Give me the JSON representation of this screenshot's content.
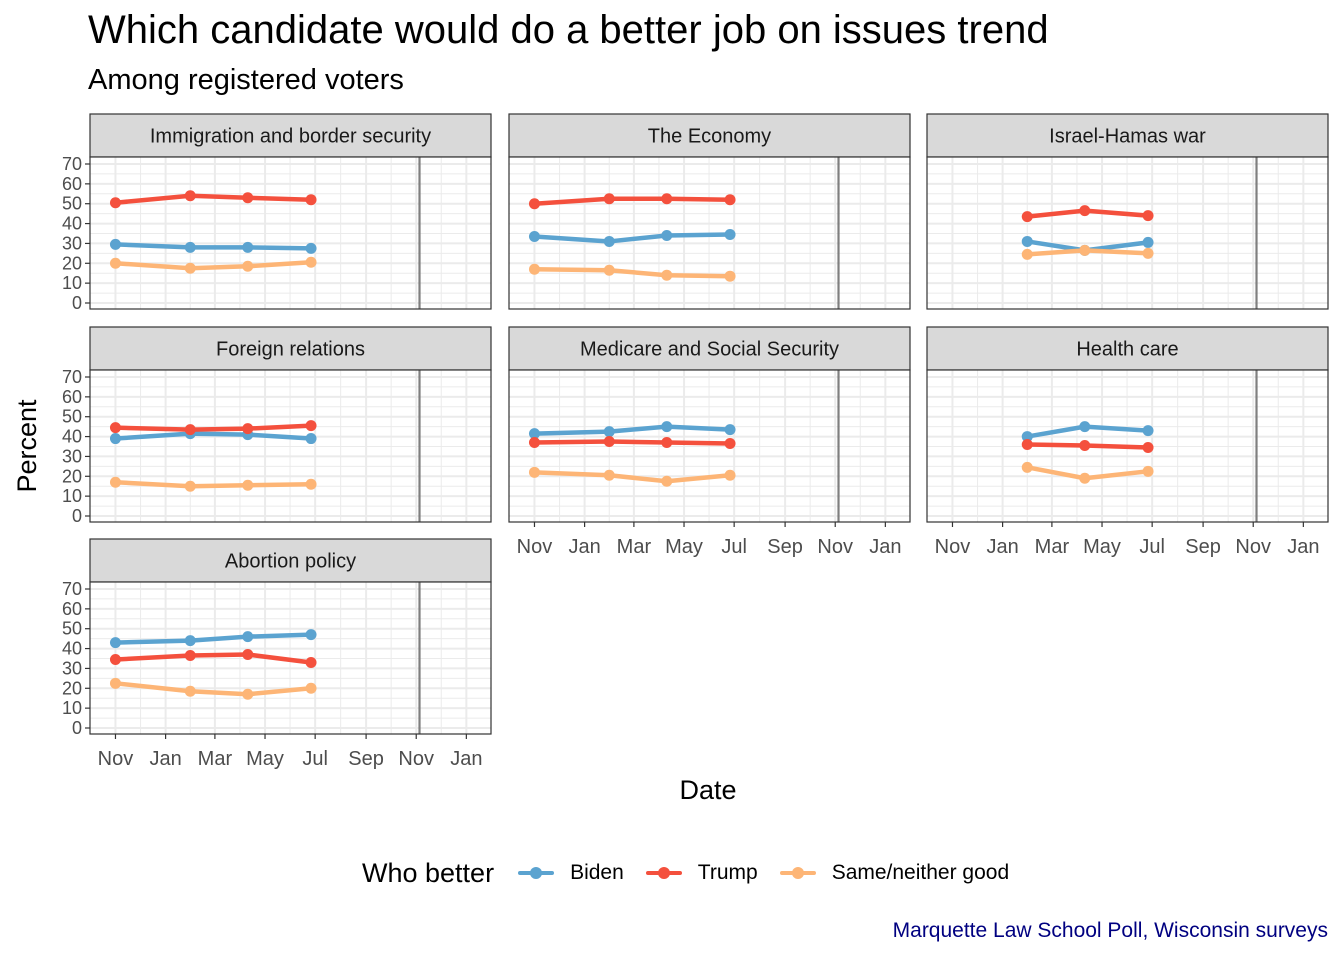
{
  "chart": {
    "title": "Which candidate would do a better job on issues trend",
    "subtitle": "Among registered voters",
    "caption": "Marquette Law School Poll, Wisconsin surveys"
  },
  "legend": {
    "title": "Who better",
    "entries": [
      "Biden",
      "Trump",
      "Same/neither good"
    ]
  },
  "colors": {
    "Biden": "#5BA3D0",
    "Trump": "#F4503D",
    "Same/neither good": "#FDB576",
    "strip_bg": "#D9D9D9",
    "grid": "#EBEBEB",
    "vline": "#7F7F7F"
  },
  "chart_data": {
    "type": "line",
    "facet_by": "issue",
    "xlabel": "Date",
    "ylabel": "Percent",
    "ylim": [
      0,
      70
    ],
    "yticks": [
      0,
      10,
      20,
      30,
      40,
      50,
      60,
      70
    ],
    "xlim": [
      "2023-10-01",
      "2025-01-31"
    ],
    "xticks": [
      {
        "date": "2023-11-01",
        "label": "Nov"
      },
      {
        "date": "2024-01-01",
        "label": "Jan"
      },
      {
        "date": "2024-03-01",
        "label": "Mar"
      },
      {
        "date": "2024-05-01",
        "label": "May"
      },
      {
        "date": "2024-07-01",
        "label": "Jul"
      },
      {
        "date": "2024-09-01",
        "label": "Sep"
      },
      {
        "date": "2024-11-01",
        "label": "Nov"
      },
      {
        "date": "2025-01-01",
        "label": "Jan"
      }
    ],
    "reference_line": "2024-11-05",
    "grid": true,
    "legend_position": "bottom",
    "facets": [
      {
        "name": "Immigration and border security",
        "series": [
          {
            "name": "Biden",
            "x": [
              "2023-11-01",
              "2024-01-31",
              "2024-04-10",
              "2024-06-26"
            ],
            "y": [
              29.5,
              28,
              28,
              27.5
            ]
          },
          {
            "name": "Trump",
            "x": [
              "2023-11-01",
              "2024-01-31",
              "2024-04-10",
              "2024-06-26"
            ],
            "y": [
              50.5,
              54,
              53,
              52
            ]
          },
          {
            "name": "Same/neither good",
            "x": [
              "2023-11-01",
              "2024-01-31",
              "2024-04-10",
              "2024-06-26"
            ],
            "y": [
              20,
              17.5,
              18.5,
              20.5
            ]
          }
        ]
      },
      {
        "name": "The Economy",
        "series": [
          {
            "name": "Biden",
            "x": [
              "2023-11-01",
              "2024-01-31",
              "2024-04-10",
              "2024-06-26"
            ],
            "y": [
              33.5,
              31,
              34,
              34.5
            ]
          },
          {
            "name": "Trump",
            "x": [
              "2023-11-01",
              "2024-01-31",
              "2024-04-10",
              "2024-06-26"
            ],
            "y": [
              50,
              52.5,
              52.5,
              52
            ]
          },
          {
            "name": "Same/neither good",
            "x": [
              "2023-11-01",
              "2024-01-31",
              "2024-04-10",
              "2024-06-26"
            ],
            "y": [
              17,
              16.5,
              14,
              13.5
            ]
          }
        ]
      },
      {
        "name": "Israel-Hamas war",
        "series": [
          {
            "name": "Biden",
            "x": [
              "2024-01-31",
              "2024-04-10",
              "2024-06-26"
            ],
            "y": [
              31,
              26.5,
              30.5
            ]
          },
          {
            "name": "Trump",
            "x": [
              "2024-01-31",
              "2024-04-10",
              "2024-06-26"
            ],
            "y": [
              43.5,
              46.5,
              44
            ]
          },
          {
            "name": "Same/neither good",
            "x": [
              "2024-01-31",
              "2024-04-10",
              "2024-06-26"
            ],
            "y": [
              24.5,
              26.5,
              25
            ]
          }
        ]
      },
      {
        "name": "Foreign relations",
        "series": [
          {
            "name": "Biden",
            "x": [
              "2023-11-01",
              "2024-01-31",
              "2024-04-10",
              "2024-06-26"
            ],
            "y": [
              39,
              41.5,
              41,
              39
            ]
          },
          {
            "name": "Trump",
            "x": [
              "2023-11-01",
              "2024-01-31",
              "2024-04-10",
              "2024-06-26"
            ],
            "y": [
              44.5,
              43.5,
              44,
              45.5
            ]
          },
          {
            "name": "Same/neither good",
            "x": [
              "2023-11-01",
              "2024-01-31",
              "2024-04-10",
              "2024-06-26"
            ],
            "y": [
              17,
              15,
              15.5,
              16
            ]
          }
        ]
      },
      {
        "name": "Medicare and Social Security",
        "series": [
          {
            "name": "Biden",
            "x": [
              "2023-11-01",
              "2024-01-31",
              "2024-04-10",
              "2024-06-26"
            ],
            "y": [
              41.5,
              42.5,
              45,
              43.5
            ]
          },
          {
            "name": "Trump",
            "x": [
              "2023-11-01",
              "2024-01-31",
              "2024-04-10",
              "2024-06-26"
            ],
            "y": [
              37,
              37.5,
              37,
              36.5
            ]
          },
          {
            "name": "Same/neither good",
            "x": [
              "2023-11-01",
              "2024-01-31",
              "2024-04-10",
              "2024-06-26"
            ],
            "y": [
              22,
              20.5,
              17.5,
              20.5
            ]
          }
        ]
      },
      {
        "name": "Health care",
        "series": [
          {
            "name": "Biden",
            "x": [
              "2024-01-31",
              "2024-04-10",
              "2024-06-26"
            ],
            "y": [
              40,
              45,
              43
            ]
          },
          {
            "name": "Trump",
            "x": [
              "2024-01-31",
              "2024-04-10",
              "2024-06-26"
            ],
            "y": [
              36,
              35.5,
              34.5
            ]
          },
          {
            "name": "Same/neither good",
            "x": [
              "2024-01-31",
              "2024-04-10",
              "2024-06-26"
            ],
            "y": [
              24.5,
              19,
              22.5
            ]
          }
        ]
      },
      {
        "name": "Abortion policy",
        "series": [
          {
            "name": "Biden",
            "x": [
              "2023-11-01",
              "2024-01-31",
              "2024-04-10",
              "2024-06-26"
            ],
            "y": [
              43,
              44,
              46,
              47
            ]
          },
          {
            "name": "Trump",
            "x": [
              "2023-11-01",
              "2024-01-31",
              "2024-04-10",
              "2024-06-26"
            ],
            "y": [
              34.5,
              36.5,
              37,
              33
            ]
          },
          {
            "name": "Same/neither good",
            "x": [
              "2023-11-01",
              "2024-01-31",
              "2024-04-10",
              "2024-06-26"
            ],
            "y": [
              22.5,
              18.5,
              17,
              20
            ]
          }
        ]
      }
    ]
  }
}
